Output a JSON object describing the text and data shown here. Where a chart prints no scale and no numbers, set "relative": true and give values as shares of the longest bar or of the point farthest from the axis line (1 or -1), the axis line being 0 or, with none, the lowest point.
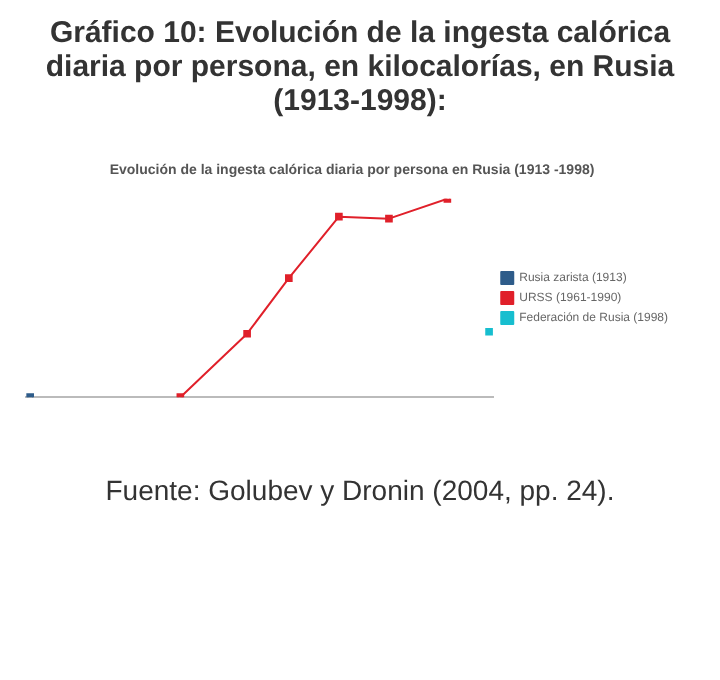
{
  "chart_data": {
    "type": "line",
    "title": "Gráfico 10: Evolución de la ingesta calórica diaria por persona, en kilocalorías, en Rusia (1913-1998):",
    "subtitle": "Evolución de la ingesta calórica diaria por persona en Rusia (1913 -1998)",
    "annotations": [
      "Fuente: Golubev y Dronin (2004, pp. 24)."
    ],
    "relative": true,
    "legend": "right",
    "marker": "square",
    "line_style": "solid",
    "categories": [
      null,
      null,
      null,
      null,
      null,
      null,
      null,
      null,
      null,
      null,
      null,
      null,
      null,
      null,
      null,
      null,
      null,
      null,
      null,
      null,
      null,
      null,
      null,
      null,
      null,
      null,
      null,
      null,
      null,
      null,
      null,
      null,
      null,
      null,
      null,
      null,
      null,
      null,
      null,
      null,
      null,
      null,
      null,
      null,
      null,
      null,
      null,
      null,
      null,
      null,
      null,
      null,
      null,
      null,
      null,
      null
    ],
    "series": [
      {
        "name": "Rusia zarista (1913)",
        "color": "#2e5c8a",
        "values": [
          0,
          null,
          null,
          null,
          null,
          null,
          null,
          null,
          null,
          null,
          null,
          null,
          null,
          null,
          null,
          null,
          null,
          null,
          null,
          null,
          null,
          null,
          null,
          null,
          null,
          null,
          null,
          null,
          null,
          null,
          null,
          null,
          null,
          null,
          null,
          null,
          null,
          null,
          null,
          null,
          null,
          null,
          null,
          null,
          null,
          null,
          null,
          null,
          null,
          null,
          null,
          null,
          null,
          null,
          null,
          null
        ]
      },
      {
        "name": "URSS (1961-1990)",
        "color": "#e0202a",
        "values": [
          null,
          null,
          null,
          null,
          null,
          null,
          null,
          null,
          null,
          null,
          null,
          null,
          null,
          null,
          null,
          null,
          null,
          null,
          0,
          null,
          null,
          null,
          null,
          null,
          null,
          null,
          0.32,
          null,
          null,
          null,
          null,
          0.6,
          null,
          null,
          null,
          null,
          null,
          0.91,
          null,
          null,
          null,
          null,
          null,
          0.9,
          null,
          null,
          null,
          null,
          null,
          null,
          1,
          null,
          null,
          null,
          null,
          null
        ]
      },
      {
        "name": "Federación de Rusia (1998)",
        "color": "#17becf",
        "values": [
          null,
          null,
          null,
          null,
          null,
          null,
          null,
          null,
          null,
          null,
          null,
          null,
          null,
          null,
          null,
          null,
          null,
          null,
          null,
          null,
          null,
          null,
          null,
          null,
          null,
          null,
          null,
          null,
          null,
          null,
          null,
          null,
          null,
          null,
          null,
          null,
          null,
          null,
          null,
          null,
          null,
          null,
          null,
          null,
          null,
          null,
          null,
          null,
          null,
          null,
          null,
          null,
          null,
          null,
          null,
          0.33
        ]
      }
    ]
  }
}
